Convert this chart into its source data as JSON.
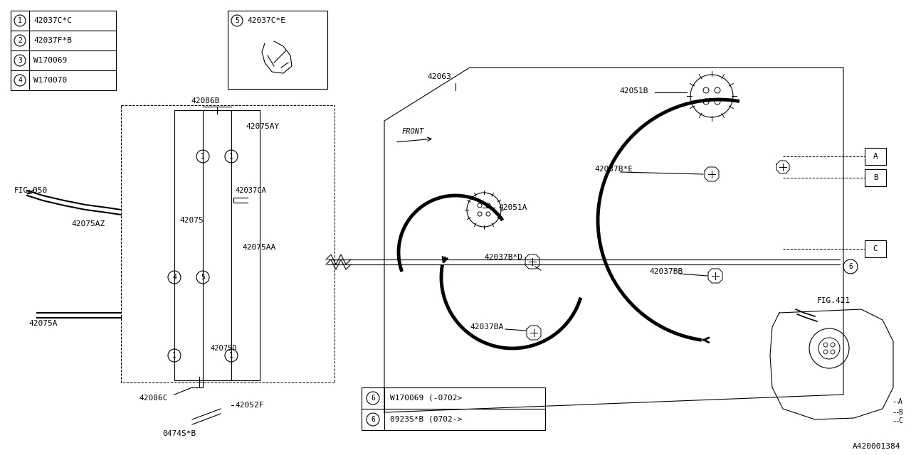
{
  "background_color": "#ffffff",
  "line_color": "#000000",
  "text_color": "#000000",
  "diagram_id": "A420001384",
  "legend_items": [
    {
      "num": "1",
      "part": "42037C*C"
    },
    {
      "num": "2",
      "part": "42037F*B"
    },
    {
      "num": "3",
      "part": "W170069"
    },
    {
      "num": "4",
      "part": "W170070"
    }
  ],
  "legend6_items": [
    "W170069 (-0702>",
    "0923S*B (0702->"
  ],
  "part5_label": "42037C*E",
  "fig_ref": "FIG.050",
  "fig421_ref": "FIG.421",
  "abc_labels": [
    "A",
    "B",
    "C"
  ],
  "front_label": "FRONT"
}
